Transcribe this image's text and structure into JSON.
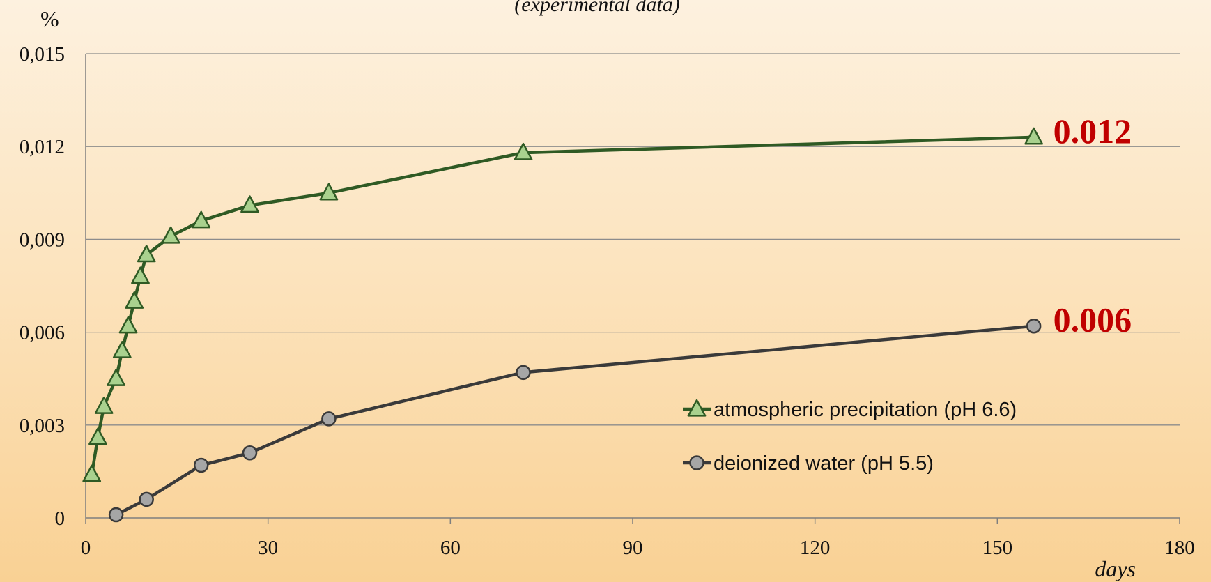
{
  "chart_data": {
    "type": "line",
    "subtitle": "(experimental data)",
    "ylabel": "%",
    "xlabel": "days",
    "xlim": [
      0,
      180
    ],
    "ylim": [
      0,
      0.015
    ],
    "x_ticks": [
      0,
      30,
      60,
      90,
      120,
      150,
      180
    ],
    "x_tick_labels": [
      "0",
      "30",
      "60",
      "90",
      "120",
      "150",
      "180"
    ],
    "y_ticks": [
      0,
      0.003,
      0.006,
      0.009,
      0.012,
      0.015
    ],
    "y_tick_labels": [
      "0",
      "0,003",
      "0,006",
      "0,009",
      "0,012",
      "0,015"
    ],
    "grid": "horizontal",
    "legend_position": "lower-center-right",
    "series": [
      {
        "name": "atmospheric precipitation (pH 6.6)",
        "marker": "triangle",
        "line_color": "#2f5a24",
        "marker_fill": "#a9d18e",
        "x": [
          1,
          2,
          3,
          5,
          6,
          7,
          8,
          9,
          10,
          14,
          19,
          27,
          40,
          72,
          156
        ],
        "y": [
          0.0014,
          0.0026,
          0.0036,
          0.0045,
          0.0054,
          0.0062,
          0.007,
          0.0078,
          0.0085,
          0.0091,
          0.0096,
          0.0101,
          0.0105,
          0.0118,
          0.0123
        ],
        "end_label": "0.012"
      },
      {
        "name": "deionized water (pH 5.5)",
        "marker": "circle",
        "line_color": "#3a3a3a",
        "marker_fill": "#a6a6a6",
        "x": [
          5,
          10,
          19,
          27,
          40,
          72,
          156
        ],
        "y": [
          0.0001,
          0.0006,
          0.0017,
          0.0021,
          0.0032,
          0.0047,
          0.0062
        ],
        "end_label": "0.006"
      }
    ]
  }
}
